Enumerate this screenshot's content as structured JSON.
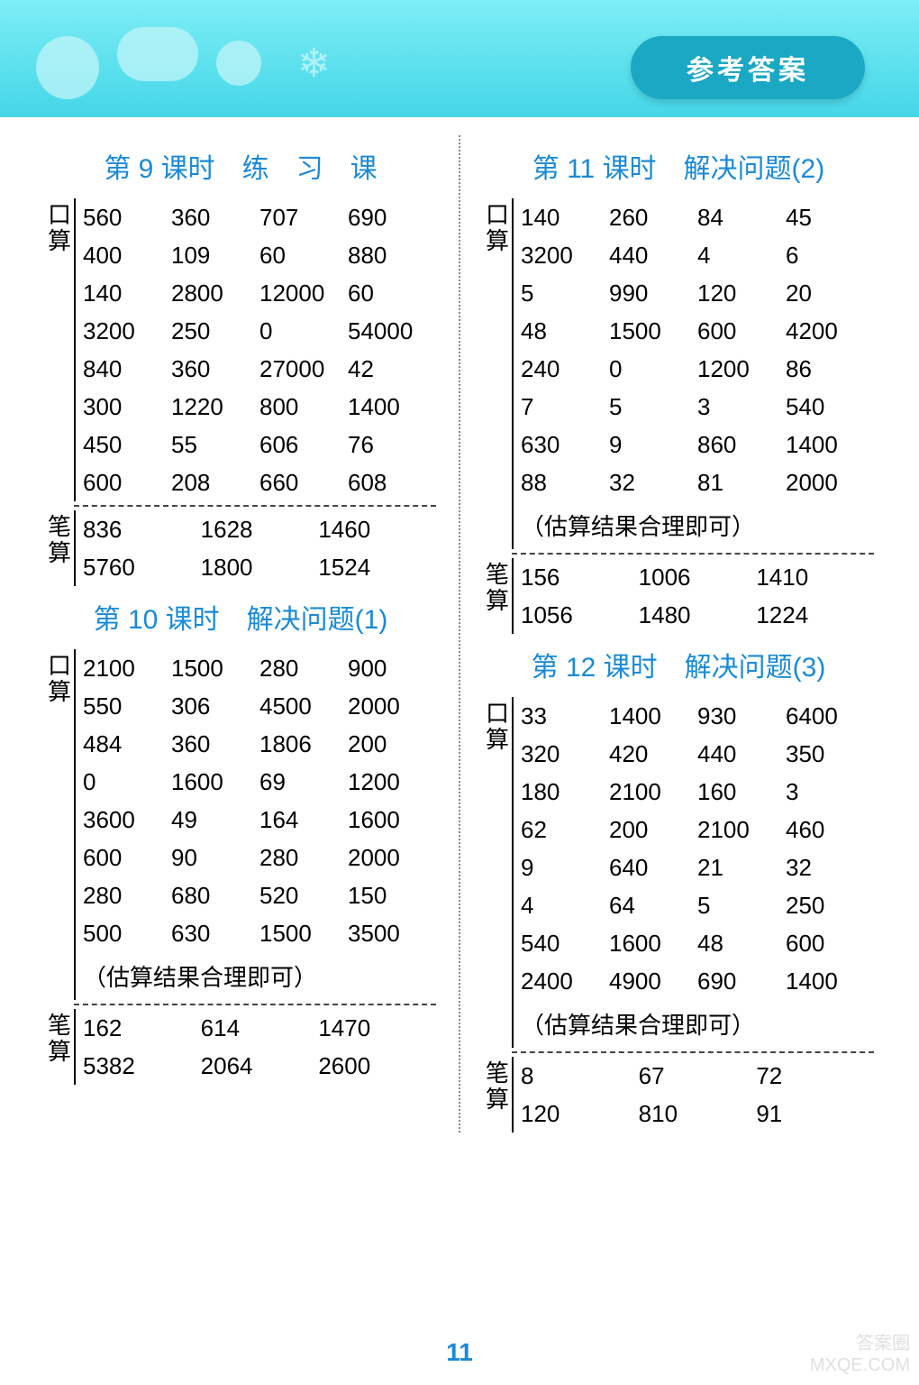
{
  "header": {
    "badge": "参考答案"
  },
  "page_number": "11",
  "watermark": {
    "line1": "答案圈",
    "line2": "MXQE.COM"
  },
  "labels": {
    "kousuan_a": "口",
    "kousuan_b": "算",
    "bisuan_a": "笔",
    "bisuan_b": "算"
  },
  "lesson9": {
    "title": "第 9 课时　练　习　课",
    "kousuan": [
      [
        "560",
        "360",
        "707",
        "690"
      ],
      [
        "400",
        "109",
        "60",
        "880"
      ],
      [
        "140",
        "2800",
        "12000",
        "60"
      ],
      [
        "3200",
        "250",
        "0",
        "54000"
      ],
      [
        "840",
        "360",
        "27000",
        "42"
      ],
      [
        "300",
        "1220",
        "800",
        "1400"
      ],
      [
        "450",
        "55",
        "606",
        "76"
      ],
      [
        "600",
        "208",
        "660",
        "608"
      ]
    ],
    "bisuan": [
      [
        "836",
        "1628",
        "1460"
      ],
      [
        "5760",
        "1800",
        "1524"
      ]
    ]
  },
  "lesson10": {
    "title": "第 10 课时　解决问题(1)",
    "kousuan": [
      [
        "2100",
        "1500",
        "280",
        "900"
      ],
      [
        "550",
        "306",
        "4500",
        "2000"
      ],
      [
        "484",
        "360",
        "1806",
        "200"
      ],
      [
        "0",
        "1600",
        "69",
        "1200"
      ],
      [
        "3600",
        "49",
        "164",
        "1600"
      ],
      [
        "600",
        "90",
        "280",
        "2000"
      ],
      [
        "280",
        "680",
        "520",
        "150"
      ],
      [
        "500",
        "630",
        "1500",
        "3500"
      ]
    ],
    "note": "（估算结果合理即可）",
    "bisuan": [
      [
        "162",
        "614",
        "1470"
      ],
      [
        "5382",
        "2064",
        "2600"
      ]
    ]
  },
  "lesson11": {
    "title": "第 11 课时　解决问题(2)",
    "kousuan": [
      [
        "140",
        "260",
        "84",
        "45"
      ],
      [
        "3200",
        "440",
        "4",
        "6"
      ],
      [
        "5",
        "990",
        "120",
        "20"
      ],
      [
        "48",
        "1500",
        "600",
        "4200"
      ],
      [
        "240",
        "0",
        "1200",
        "86"
      ],
      [
        "7",
        "5",
        "3",
        "540"
      ],
      [
        "630",
        "9",
        "860",
        "1400"
      ],
      [
        "88",
        "32",
        "81",
        "2000"
      ]
    ],
    "note": "（估算结果合理即可）",
    "bisuan": [
      [
        "156",
        "1006",
        "1410"
      ],
      [
        "1056",
        "1480",
        "1224"
      ]
    ]
  },
  "lesson12": {
    "title": "第 12 课时　解决问题(3)",
    "kousuan": [
      [
        "33",
        "1400",
        "930",
        "6400"
      ],
      [
        "320",
        "420",
        "440",
        "350"
      ],
      [
        "180",
        "2100",
        "160",
        "3"
      ],
      [
        "62",
        "200",
        "2100",
        "460"
      ],
      [
        "9",
        "640",
        "21",
        "32"
      ],
      [
        "4",
        "64",
        "5",
        "250"
      ],
      [
        "540",
        "1600",
        "48",
        "600"
      ],
      [
        "2400",
        "4900",
        "690",
        "1400"
      ]
    ],
    "note": "（估算结果合理即可）",
    "bisuan": [
      [
        "8",
        "67",
        "72"
      ],
      [
        "120",
        "810",
        "91"
      ]
    ]
  }
}
